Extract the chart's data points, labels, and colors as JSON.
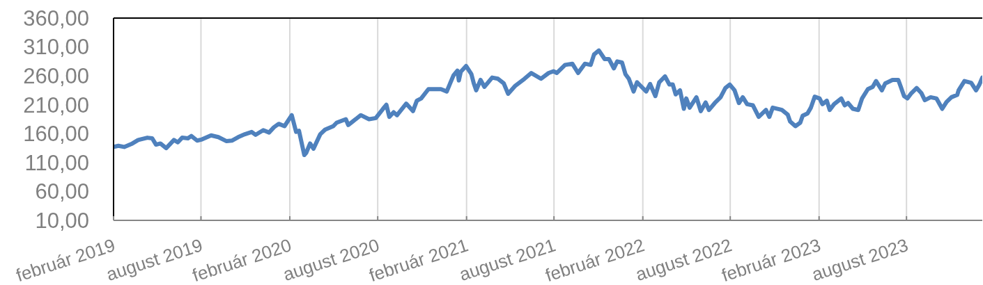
{
  "chart_data": {
    "type": "line",
    "x": [
      "2019-02-01",
      "2019-02-11",
      "2019-02-23",
      "2019-03-12",
      "2019-03-24",
      "2019-04-12",
      "2019-04-22",
      "2019-04-30",
      "2019-05-09",
      "2019-05-21",
      "2019-06-06",
      "2019-06-14",
      "2019-06-23",
      "2019-07-05",
      "2019-07-12",
      "2019-07-24",
      "2019-08-03",
      "2019-08-22",
      "2019-09-06",
      "2019-09-23",
      "2019-10-04",
      "2019-10-17",
      "2019-10-31",
      "2019-11-14",
      "2019-11-22",
      "2019-12-08",
      "2019-12-20",
      "2019-12-30",
      "2020-01-09",
      "2020-01-21",
      "2020-02-05",
      "2020-02-14",
      "2020-02-20",
      "2020-03-02",
      "2020-03-06",
      "2020-03-14",
      "2020-03-21",
      "2020-04-04",
      "2020-04-14",
      "2020-05-01",
      "2020-05-08",
      "2020-05-27",
      "2020-06-01",
      "2020-06-27",
      "2020-07-14",
      "2020-07-28",
      "2020-08-12",
      "2020-08-19",
      "2020-08-25",
      "2020-09-03",
      "2020-09-10",
      "2020-09-29",
      "2020-10-13",
      "2020-10-21",
      "2020-10-30",
      "2020-11-14",
      "2020-11-26",
      "2020-12-10",
      "2020-12-22",
      "2020-12-29",
      "2021-01-05",
      "2021-01-13",
      "2021-01-16",
      "2021-01-20",
      "2021-01-31",
      "2021-02-11",
      "2021-02-16",
      "2021-02-21",
      "2021-03-02",
      "2021-03-10",
      "2021-03-26",
      "2021-04-07",
      "2021-04-19",
      "2021-04-28",
      "2021-05-13",
      "2021-06-01",
      "2021-06-15",
      "2021-07-05",
      "2021-07-21",
      "2021-07-31",
      "2021-08-07",
      "2021-08-24",
      "2021-09-08",
      "2021-09-20",
      "2021-10-04",
      "2021-10-16",
      "2021-10-23",
      "2021-11-02",
      "2021-11-14",
      "2021-11-23",
      "2021-12-03",
      "2021-12-10",
      "2021-12-20",
      "2021-12-27",
      "2022-01-03",
      "2022-01-13",
      "2022-01-20",
      "2022-01-27",
      "2022-02-08",
      "2022-02-16",
      "2022-02-27",
      "2022-03-07",
      "2022-03-19",
      "2022-03-28",
      "2022-04-04",
      "2022-04-10",
      "2022-04-19",
      "2022-04-27",
      "2022-05-02",
      "2022-05-09",
      "2022-05-23",
      "2022-06-01",
      "2022-06-11",
      "2022-06-18",
      "2022-06-30",
      "2022-07-12",
      "2022-07-22",
      "2022-07-31",
      "2022-08-10",
      "2022-08-19",
      "2022-08-27",
      "2022-09-05",
      "2022-09-17",
      "2022-09-29",
      "2022-10-14",
      "2022-10-21",
      "2022-10-28",
      "2022-11-16",
      "2022-11-28",
      "2022-12-03",
      "2022-12-14",
      "2022-12-24",
      "2022-12-29",
      "2023-01-08",
      "2023-01-15",
      "2023-01-23",
      "2023-02-02",
      "2023-02-08",
      "2023-02-17",
      "2023-02-23",
      "2023-03-04",
      "2023-03-19",
      "2023-03-26",
      "2023-04-02",
      "2023-04-12",
      "2023-04-23",
      "2023-05-01",
      "2023-05-13",
      "2023-05-23",
      "2023-05-30",
      "2023-06-11",
      "2023-06-18",
      "2023-07-03",
      "2023-07-15",
      "2023-07-19",
      "2023-07-27",
      "2023-08-03",
      "2023-08-10",
      "2023-08-22",
      "2023-09-01",
      "2023-09-08",
      "2023-09-20",
      "2023-10-02",
      "2023-10-14",
      "2023-10-23",
      "2023-11-02",
      "2023-11-14",
      "2023-11-17",
      "2023-11-29",
      "2023-12-13",
      "2023-12-23",
      "2023-12-30",
      "2024-01-05"
    ],
    "series": [
      {
        "color": "#4f81bd",
        "values": [
          137,
          139,
          137,
          143,
          149,
          153,
          152,
          141,
          143,
          135,
          149,
          145,
          153,
          152,
          156,
          148,
          150,
          157,
          154,
          147,
          148,
          154,
          159,
          163,
          158,
          166,
          162,
          171,
          177,
          173,
          192,
          163,
          165,
          123,
          127,
          143,
          134,
          159,
          167,
          173,
          179,
          185,
          175,
          192,
          185,
          187,
          203,
          210,
          189,
          197,
          192,
          212,
          199,
          217,
          221,
          237,
          237,
          237,
          233,
          247,
          261,
          269,
          252,
          267,
          277,
          263,
          247,
          235,
          253,
          241,
          257,
          255,
          247,
          229,
          243,
          255,
          265,
          255,
          265,
          268,
          265,
          279,
          281,
          265,
          281,
          279,
          297,
          304,
          289,
          289,
          273,
          285,
          283,
          263,
          255,
          233,
          249,
          243,
          233,
          246,
          225,
          249,
          259,
          245,
          245,
          228,
          235,
          203,
          221,
          205,
          223,
          199,
          214,
          201,
          213,
          223,
          239,
          245,
          235,
          213,
          223,
          211,
          209,
          189,
          201,
          189,
          205,
          201,
          193,
          181,
          173,
          179,
          191,
          195,
          205,
          224,
          221,
          211,
          217,
          201,
          211,
          221,
          209,
          213,
          203,
          201,
          221,
          237,
          241,
          251,
          235,
          247,
          253,
          253,
          244,
          225,
          221,
          229,
          239,
          230,
          218,
          223,
          221,
          203,
          215,
          223,
          227,
          235,
          251,
          248,
          235,
          245,
          257
        ]
      }
    ],
    "xlim": [
      "2019-02-01",
      "2024-01-05"
    ],
    "xticks": [
      {
        "value": "2019-02-01",
        "label": "február 2019"
      },
      {
        "value": "2019-08-01",
        "label": "august 2019"
      },
      {
        "value": "2020-02-01",
        "label": "február 2020"
      },
      {
        "value": "2020-08-01",
        "label": "august 2020"
      },
      {
        "value": "2021-02-01",
        "label": "február 2021"
      },
      {
        "value": "2021-08-01",
        "label": "august 2021"
      },
      {
        "value": "2022-02-01",
        "label": "február 2022"
      },
      {
        "value": "2022-08-01",
        "label": "august 2022"
      },
      {
        "value": "2023-02-01",
        "label": "február 2023"
      },
      {
        "value": "2023-08-01",
        "label": "august 2023"
      }
    ],
    "ylim": [
      10,
      360
    ],
    "yticks": [
      {
        "value": 10,
        "label": "10,00"
      },
      {
        "value": 60,
        "label": "60,00"
      },
      {
        "value": 110,
        "label": "110,00"
      },
      {
        "value": 160,
        "label": "160,00"
      },
      {
        "value": 210,
        "label": "210,00"
      },
      {
        "value": 260,
        "label": "260,00"
      },
      {
        "value": 310,
        "label": "310,00"
      },
      {
        "value": 360,
        "label": "360,00"
      }
    ],
    "grid": "x",
    "line_style": "solid"
  }
}
